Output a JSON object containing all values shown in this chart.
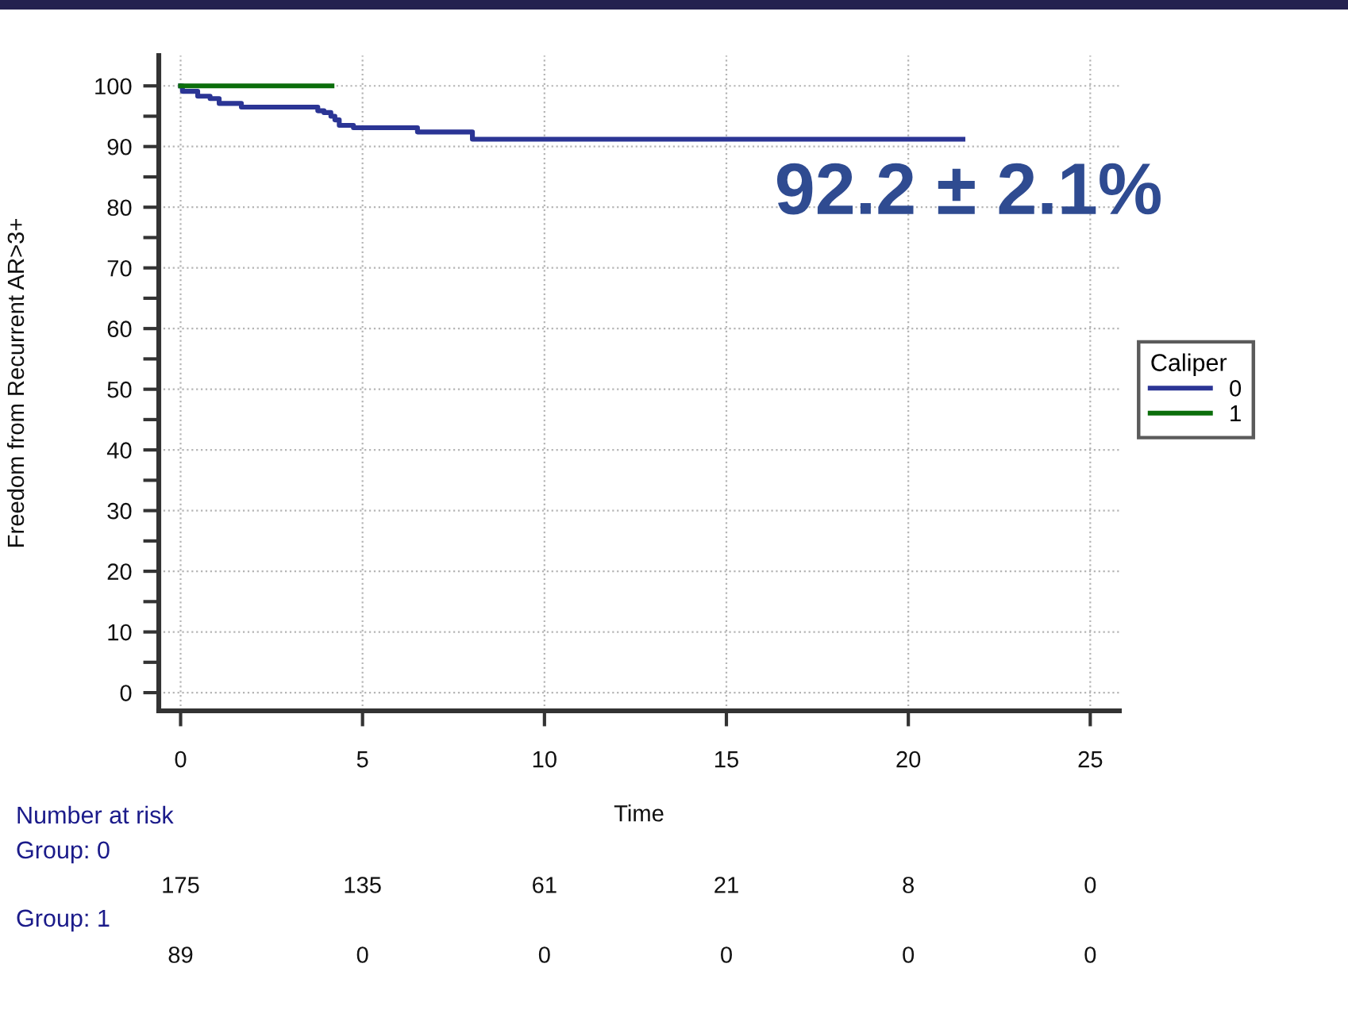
{
  "chart_data": {
    "type": "step",
    "xlabel": "Time",
    "ylabel": "Freedom from Recurrent AR>3+",
    "legend_title": "Caliper",
    "series": [
      {
        "name": "0",
        "color": "#2b3595",
        "x": [
          0,
          0.05,
          0.47,
          0.81,
          1.06,
          1.67,
          3.77,
          3.94,
          4.13,
          4.24,
          4.36,
          4.75,
          6.51,
          8.02,
          21.5
        ],
        "values": [
          100,
          99.1,
          98.3,
          97.9,
          97.1,
          96.5,
          95.9,
          95.6,
          95.0,
          94.4,
          93.5,
          93.1,
          92.4,
          91.2,
          91.2
        ]
      },
      {
        "name": "1",
        "color": "#0b6e0b",
        "x": [
          0,
          4.16
        ],
        "values": [
          100,
          100
        ]
      }
    ],
    "xlim": [
      -0.6,
      25.8
    ],
    "ylim": [
      -3,
      105
    ],
    "xticks": [
      0,
      5,
      10,
      15,
      20,
      25
    ],
    "yticks": [
      0,
      {
        "value": 5,
        "label": null
      },
      10,
      {
        "value": 15,
        "label": null
      },
      20,
      {
        "value": 25,
        "label": null
      },
      30,
      {
        "value": 35,
        "label": null
      },
      40,
      {
        "value": 45,
        "label": null
      },
      50,
      {
        "value": 55,
        "label": null
      },
      60,
      {
        "value": 65,
        "label": null
      },
      70,
      {
        "value": 75,
        "label": null
      },
      80,
      {
        "value": 85,
        "label": null
      },
      90,
      {
        "value": 95,
        "label": null
      },
      100
    ],
    "grid": true,
    "legend": "right",
    "line_style": "solid",
    "annotations": [
      "92.2 ± 2.1%",
      "Number at risk",
      "Group: 0",
      "175",
      "135",
      "61",
      "21",
      "8",
      "0",
      "Group: 1",
      "89",
      "0",
      "0",
      "0",
      "0",
      "0"
    ]
  }
}
